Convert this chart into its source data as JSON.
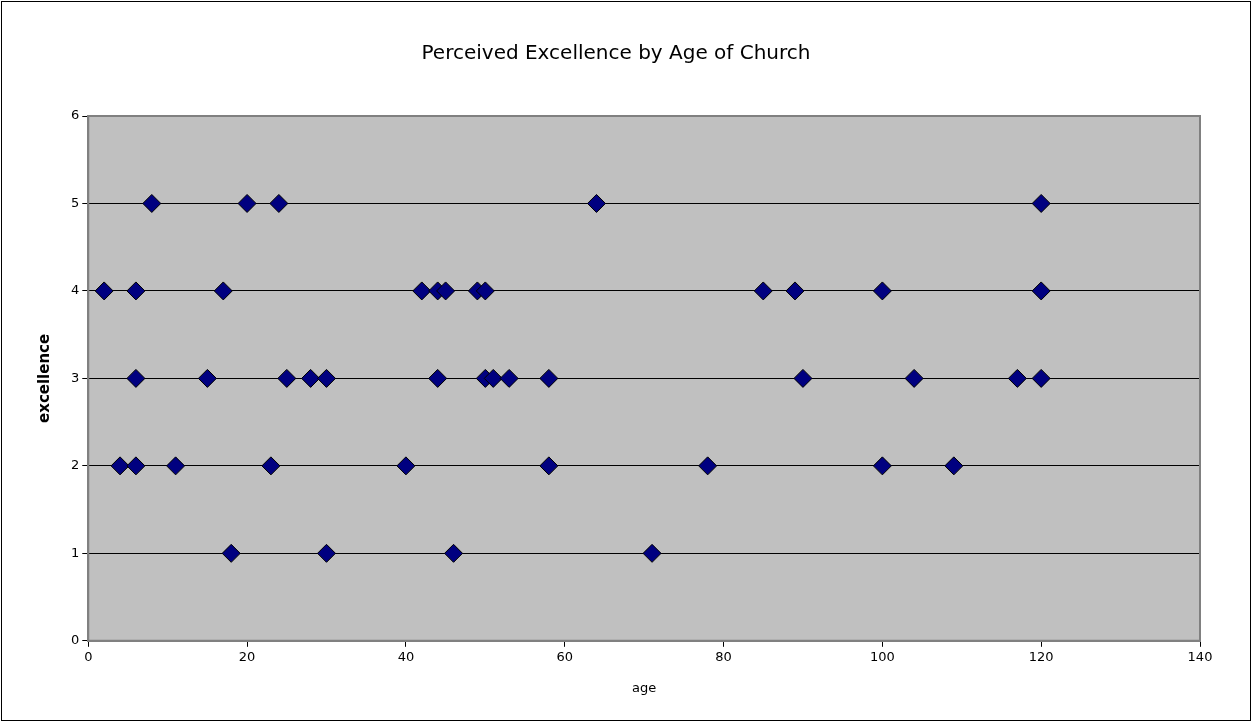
{
  "chart_data": {
    "type": "scatter",
    "title": "Perceived Excellence by Age of Church",
    "xlabel": "age",
    "ylabel": "excellence",
    "xlim": [
      0,
      140
    ],
    "xticks": [
      0,
      20,
      40,
      60,
      80,
      100,
      120,
      140
    ],
    "ylim": [
      0,
      6
    ],
    "yticks": [
      0,
      1,
      2,
      3,
      4,
      5,
      6
    ],
    "grid": "y",
    "legend": false,
    "marker": "diamond",
    "series": [
      {
        "color": "#000080",
        "x": [
          8,
          20,
          24,
          64,
          120,
          2,
          6,
          17,
          42,
          44,
          45,
          49,
          50,
          85,
          89,
          100,
          120,
          6,
          15,
          25,
          28,
          30,
          44,
          50,
          51,
          53,
          58,
          90,
          104,
          117,
          120,
          4,
          6,
          11,
          23,
          40,
          58,
          78,
          100,
          109,
          18,
          30,
          46,
          71
        ],
        "values": [
          5,
          5,
          5,
          5,
          5,
          4,
          4,
          4,
          4,
          4,
          4,
          4,
          4,
          4,
          4,
          4,
          4,
          3,
          3,
          3,
          3,
          3,
          3,
          3,
          3,
          3,
          3,
          3,
          3,
          3,
          3,
          2,
          2,
          2,
          2,
          2,
          2,
          2,
          2,
          2,
          1,
          1,
          1,
          1
        ]
      }
    ]
  }
}
